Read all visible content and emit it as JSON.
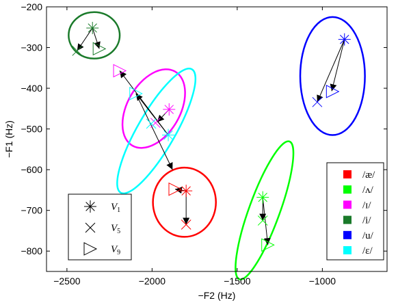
{
  "chart_data": {
    "type": "scatter",
    "xlabel": "−F2 (Hz)",
    "ylabel": "−F1 (Hz)",
    "xlim": [
      -2620,
      -620
    ],
    "ylim": [
      -850,
      -200
    ],
    "x_ticks": [
      -2500,
      -2000,
      -1500,
      -1000
    ],
    "x_tick_labels": [
      "−2500",
      "−2000",
      "−1500",
      "−1000"
    ],
    "y_ticks": [
      -200,
      -300,
      -400,
      -500,
      -600,
      -700,
      -800
    ],
    "y_tick_labels": [
      "−200",
      "−300",
      "−400",
      "−500",
      "−600",
      "−700",
      "−800"
    ],
    "grid": false,
    "vowels": [
      {
        "name": "/æ/",
        "color": "#ff0000",
        "v1": [
          -1800,
          -652
        ],
        "v5": [
          -1800,
          -735
        ],
        "v9": [
          -1865,
          -648
        ],
        "ellipse": {
          "cx": -1810,
          "cy": -680,
          "rx": 185,
          "ry": 85,
          "angle": 0
        }
      },
      {
        "name": "/ʌ/",
        "color": "#00ff00",
        "v1": [
          -1350,
          -668
        ],
        "v5": [
          -1350,
          -725
        ],
        "v9": [
          -1320,
          -785
        ],
        "ellipse": {
          "cx": -1340,
          "cy": -700,
          "rx": 90,
          "ry": 180,
          "angle": 20
        }
      },
      {
        "name": "/ɪ/",
        "color": "#ff00ff",
        "v1": [
          -1900,
          -452
        ],
        "v5": [
          -1980,
          -485
        ],
        "v9": [
          -2190,
          -357
        ],
        "ellipse": {
          "cx": -1990,
          "cy": -450,
          "rx": 155,
          "ry": 105,
          "angle": 30
        }
      },
      {
        "name": "/i/",
        "color": "#1a7a2a",
        "v1": [
          -2350,
          -252
        ],
        "v5": [
          -2440,
          -308
        ],
        "v9": [
          -2310,
          -303
        ],
        "ellipse": {
          "cx": -2340,
          "cy": -270,
          "rx": 150,
          "ry": 57,
          "angle": 0
        }
      },
      {
        "name": "/u/",
        "color": "#0000ff",
        "v1": [
          -870,
          -280
        ],
        "v5": [
          -1030,
          -434
        ],
        "v9": [
          -940,
          -408
        ],
        "ellipse": {
          "cx": -940,
          "cy": -370,
          "rx": 190,
          "ry": 145,
          "angle": 0
        }
      },
      {
        "name": "/ɛ/",
        "color": "#00ffff",
        "v1": [
          -1905,
          -515
        ],
        "v5": [
          -2005,
          -487
        ],
        "v9": [
          -2095,
          -413
        ],
        "ellipse": {
          "cx": -1975,
          "cy": -505,
          "rx": 110,
          "ry": 175,
          "angle": 30
        }
      }
    ],
    "arrows": [
      [
        [
          -2350,
          -252
        ],
        [
          -2440,
          -308
        ]
      ],
      [
        [
          -2350,
          -252
        ],
        [
          -2310,
          -303
        ]
      ],
      [
        [
          -870,
          -280
        ],
        [
          -1030,
          -434
        ]
      ],
      [
        [
          -870,
          -280
        ],
        [
          -945,
          -407
        ]
      ],
      [
        [
          -1905,
          -515
        ],
        [
          -2190,
          -357
        ]
      ],
      [
        [
          -1905,
          -515
        ],
        [
          -2095,
          -413
        ]
      ],
      [
        [
          -2095,
          -413
        ],
        [
          -1880,
          -600
        ]
      ],
      [
        [
          -1900,
          -452
        ],
        [
          -1970,
          -483
        ]
      ],
      [
        [
          -1800,
          -652
        ],
        [
          -1865,
          -648
        ]
      ],
      [
        [
          -1800,
          -652
        ],
        [
          -1800,
          -735
        ]
      ],
      [
        [
          -1350,
          -668
        ],
        [
          -1350,
          -725
        ]
      ],
      [
        [
          -1350,
          -668
        ],
        [
          -1320,
          -785
        ]
      ]
    ],
    "marker_legend": [
      {
        "symbol": "asterisk",
        "label": "V",
        "sub": "1"
      },
      {
        "symbol": "x",
        "label": "V",
        "sub": "5"
      },
      {
        "symbol": "triangle",
        "label": "V",
        "sub": "9"
      }
    ],
    "legend_placement": "right"
  }
}
